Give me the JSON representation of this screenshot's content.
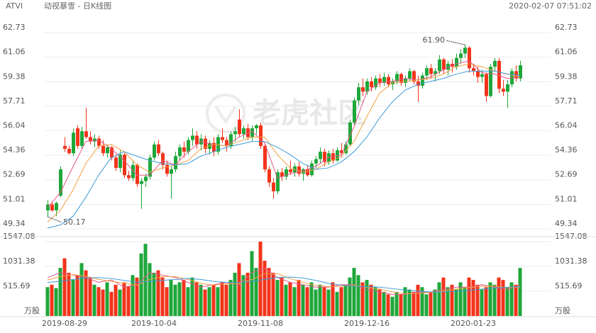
{
  "header": {
    "symbol": "ATVI",
    "name": "动视暴雪 - 日K线图",
    "time": "2020-02-07 07:51:02"
  },
  "watermark": "老虎社区",
  "chart_data": [
    {
      "type": "candlestick",
      "categories": [
        null,
        null,
        null,
        null,
        "2019-08-29",
        null,
        null,
        null,
        null,
        null,
        null,
        null,
        null,
        null,
        null,
        null,
        null,
        null,
        null,
        null,
        null,
        null,
        null,
        null,
        null,
        "2019-10-04",
        null,
        null,
        null,
        null,
        null,
        null,
        null,
        null,
        null,
        null,
        null,
        null,
        null,
        null,
        null,
        null,
        null,
        null,
        null,
        null,
        null,
        null,
        null,
        null,
        "2019-11-08",
        null,
        null,
        null,
        null,
        null,
        null,
        null,
        null,
        null,
        null,
        null,
        null,
        null,
        null,
        null,
        null,
        null,
        null,
        null,
        null,
        null,
        null,
        null,
        null,
        "2019-12-16",
        null,
        null,
        null,
        null,
        null,
        null,
        null,
        null,
        null,
        null,
        null,
        null,
        null,
        null,
        null,
        null,
        null,
        null,
        null,
        null,
        null,
        null,
        null,
        null,
        "2020-01-23",
        null,
        null,
        null,
        null,
        null,
        null,
        null,
        null,
        null,
        null,
        null
      ],
      "candles": [
        [
          50.6,
          51.3,
          50.17,
          51.0
        ],
        [
          51.0,
          51.2,
          50.5,
          50.6
        ],
        [
          50.6,
          51.2,
          50.2,
          51.1
        ],
        [
          51.6,
          53.6,
          51.5,
          53.4
        ],
        [
          55.0,
          55.6,
          54.6,
          54.8
        ],
        [
          54.8,
          55.0,
          54.4,
          54.5
        ],
        [
          54.5,
          56.2,
          54.3,
          55.9
        ],
        [
          56.2,
          56.4,
          54.8,
          55.0
        ],
        [
          55.0,
          56.3,
          54.8,
          56.0
        ],
        [
          56.0,
          57.6,
          55.5,
          55.6
        ],
        [
          55.6,
          56.0,
          55.1,
          55.3
        ],
        [
          55.3,
          55.8,
          54.9,
          55.5
        ],
        [
          55.5,
          55.7,
          54.8,
          55.0
        ],
        [
          55.0,
          55.4,
          54.3,
          54.5
        ],
        [
          54.5,
          55.1,
          54.2,
          54.9
        ],
        [
          54.9,
          55.0,
          54.0,
          54.2
        ],
        [
          54.2,
          54.4,
          53.3,
          53.5
        ],
        [
          53.5,
          54.7,
          53.2,
          54.4
        ],
        [
          54.4,
          54.5,
          52.8,
          53.0
        ],
        [
          53.0,
          53.3,
          52.6,
          52.8
        ],
        [
          52.8,
          54.0,
          52.6,
          53.7
        ],
        [
          53.7,
          53.8,
          52.2,
          52.4
        ],
        [
          52.4,
          52.8,
          50.7,
          52.6
        ],
        [
          52.6,
          53.1,
          52.2,
          52.9
        ],
        [
          52.9,
          54.4,
          52.7,
          54.2
        ],
        [
          54.2,
          55.3,
          54.0,
          55.1
        ],
        [
          55.1,
          55.4,
          54.3,
          54.5
        ],
        [
          54.5,
          54.6,
          53.4,
          53.7
        ],
        [
          53.7,
          54.0,
          52.9,
          53.1
        ],
        [
          53.1,
          53.6,
          51.4,
          53.4
        ],
        [
          53.4,
          54.6,
          53.2,
          54.3
        ],
        [
          54.3,
          55.1,
          54.0,
          54.9
        ],
        [
          54.9,
          55.3,
          54.2,
          54.6
        ],
        [
          54.6,
          55.6,
          54.4,
          55.4
        ],
        [
          55.4,
          56.2,
          55.0,
          55.7
        ],
        [
          55.7,
          56.0,
          54.8,
          55.1
        ],
        [
          55.1,
          55.8,
          54.7,
          55.5
        ],
        [
          55.5,
          55.7,
          54.5,
          54.8
        ],
        [
          54.8,
          55.4,
          54.4,
          55.2
        ],
        [
          55.2,
          55.6,
          54.3,
          54.6
        ],
        [
          54.6,
          55.8,
          54.4,
          55.6
        ],
        [
          55.6,
          56.2,
          55.2,
          55.4
        ],
        [
          55.4,
          55.6,
          54.6,
          55.0
        ],
        [
          55.0,
          56.0,
          54.8,
          55.8
        ],
        [
          55.8,
          56.3,
          55.3,
          56.0
        ],
        [
          56.8,
          57.5,
          55.6,
          55.8
        ],
        [
          55.8,
          56.4,
          55.5,
          56.2
        ],
        [
          56.2,
          56.5,
          55.4,
          55.6
        ],
        [
          55.6,
          56.4,
          55.3,
          56.2
        ],
        [
          56.2,
          56.5,
          55.8,
          56.4
        ],
        [
          56.4,
          56.6,
          54.8,
          55.0
        ],
        [
          55.0,
          55.2,
          53.2,
          53.4
        ],
        [
          53.4,
          53.6,
          52.2,
          52.5
        ],
        [
          52.5,
          52.8,
          51.4,
          51.9
        ],
        [
          51.9,
          53.4,
          51.7,
          53.2
        ],
        [
          53.2,
          53.5,
          52.6,
          52.9
        ],
        [
          52.9,
          53.6,
          52.7,
          53.4
        ],
        [
          53.4,
          54.0,
          53.0,
          53.2
        ],
        [
          53.2,
          53.8,
          52.9,
          53.6
        ],
        [
          53.6,
          53.9,
          52.9,
          53.1
        ],
        [
          53.1,
          53.5,
          52.6,
          53.4
        ],
        [
          53.4,
          53.7,
          52.9,
          53.0
        ],
        [
          53.0,
          54.0,
          52.9,
          53.8
        ],
        [
          53.8,
          54.3,
          53.5,
          54.1
        ],
        [
          54.1,
          54.9,
          53.8,
          54.6
        ],
        [
          54.6,
          54.8,
          53.6,
          53.9
        ],
        [
          53.9,
          54.7,
          53.7,
          54.5
        ],
        [
          54.5,
          54.8,
          53.8,
          54.0
        ],
        [
          54.0,
          54.9,
          53.9,
          54.7
        ],
        [
          54.7,
          55.2,
          54.2,
          54.5
        ],
        [
          54.5,
          55.3,
          54.4,
          55.1
        ],
        [
          55.1,
          56.8,
          55.0,
          56.6
        ],
        [
          56.6,
          58.3,
          56.4,
          58.1
        ],
        [
          58.1,
          59.3,
          57.8,
          59.0
        ],
        [
          59.0,
          59.6,
          58.4,
          58.7
        ],
        [
          58.7,
          59.6,
          58.5,
          59.4
        ],
        [
          59.4,
          59.7,
          58.7,
          59.0
        ],
        [
          59.0,
          59.8,
          58.8,
          59.6
        ],
        [
          59.6,
          59.9,
          59.0,
          59.3
        ],
        [
          59.3,
          60.0,
          59.1,
          59.7
        ],
        [
          59.7,
          59.9,
          59.0,
          59.2
        ],
        [
          59.2,
          59.6,
          58.8,
          59.4
        ],
        [
          59.4,
          60.1,
          59.2,
          59.9
        ],
        [
          59.9,
          60.0,
          59.1,
          59.3
        ],
        [
          59.3,
          59.8,
          59.0,
          59.6
        ],
        [
          59.6,
          60.3,
          59.4,
          60.1
        ],
        [
          60.1,
          60.2,
          59.2,
          59.4
        ],
        [
          59.4,
          59.8,
          58.0,
          59.1
        ],
        [
          59.1,
          60.0,
          58.9,
          59.8
        ],
        [
          59.8,
          60.5,
          59.5,
          60.3
        ],
        [
          60.3,
          60.6,
          59.6,
          59.9
        ],
        [
          59.9,
          60.3,
          59.4,
          60.1
        ],
        [
          60.1,
          61.2,
          59.9,
          60.9
        ],
        [
          60.9,
          61.0,
          59.9,
          60.2
        ],
        [
          60.2,
          60.8,
          59.8,
          60.6
        ],
        [
          60.6,
          60.9,
          60.0,
          60.4
        ],
        [
          60.4,
          61.3,
          60.2,
          61.0
        ],
        [
          61.0,
          61.6,
          60.6,
          61.3
        ],
        [
          61.3,
          61.9,
          61.0,
          61.7
        ],
        [
          61.7,
          61.8,
          60.0,
          60.3
        ],
        [
          60.3,
          60.6,
          59.8,
          60.1
        ],
        [
          60.1,
          60.4,
          59.3,
          59.7
        ],
        [
          59.7,
          60.2,
          59.3,
          59.9
        ],
        [
          59.9,
          60.0,
          58.0,
          58.4
        ],
        [
          58.4,
          60.6,
          58.3,
          60.4
        ],
        [
          60.4,
          61.0,
          60.1,
          60.8
        ],
        [
          60.8,
          61.0,
          58.6,
          58.9
        ],
        [
          58.9,
          59.5,
          58.4,
          58.7
        ],
        [
          58.7,
          59.5,
          57.6,
          59.2
        ],
        [
          59.2,
          60.3,
          59.0,
          60.1
        ],
        [
          60.1,
          60.5,
          59.4,
          59.6
        ],
        [
          59.6,
          60.8,
          59.4,
          60.5
        ]
      ],
      "up_color": "#1fa73a",
      "down_color": "#f2341b",
      "ylim": [
        49.34,
        62.73
      ],
      "yticks": [
        49.34,
        51.01,
        52.69,
        54.36,
        56.04,
        57.71,
        59.38,
        61.06,
        62.73
      ],
      "grid": true,
      "annotations": [
        {
          "label": "61.90",
          "value": 61.9
        },
        {
          "label": "50.17",
          "value": 50.17
        }
      ],
      "moving_averages": {
        "x": [
          0,
          3,
          6,
          9,
          12,
          15,
          18,
          21,
          24,
          27,
          30,
          33,
          36,
          39,
          42,
          45,
          48,
          51,
          54,
          57,
          60,
          63,
          66,
          69,
          72,
          75,
          78,
          81,
          84,
          87,
          90,
          93,
          96,
          99,
          102,
          105,
          108,
          111
        ],
        "series": [
          {
            "color": "#e5588a",
            "values": [
              50.8,
              51.8,
              53.6,
              55.3,
              55.4,
              54.8,
              54.0,
              53.0,
              53.0,
              54.0,
              53.7,
              54.6,
              55.3,
              55.1,
              55.0,
              55.6,
              56.0,
              55.2,
              52.8,
              53.1,
              53.3,
              53.6,
              54.2,
              54.4,
              56.3,
              58.7,
              59.3,
              59.4,
              59.6,
              59.5,
              59.7,
              60.2,
              60.6,
              60.8,
              60.0,
              59.9,
              59.6,
              59.7
            ]
          },
          {
            "color": "#f3a040",
            "values": [
              49.8,
              50.6,
              52.0,
              53.8,
              55.0,
              55.1,
              54.6,
              53.7,
              53.2,
              53.5,
              53.7,
              54.0,
              54.8,
              55.1,
              55.0,
              55.3,
              55.6,
              55.6,
              54.4,
              53.5,
              53.2,
              53.4,
              53.9,
              54.3,
              55.3,
              57.0,
              58.6,
              59.3,
              59.4,
              59.5,
              59.6,
              59.9,
              60.4,
              60.6,
              60.4,
              60.1,
              59.9,
              59.7
            ]
          },
          {
            "color": "#3e9bd6",
            "values": [
              49.4,
              49.6,
              50.2,
              51.5,
              53.0,
              54.2,
              54.6,
              54.3,
              54.0,
              53.8,
              53.7,
              53.8,
              54.3,
              54.6,
              54.9,
              55.1,
              55.3,
              55.3,
              54.9,
              54.4,
              53.8,
              53.4,
              53.5,
              53.9,
              54.6,
              55.6,
              56.9,
              58.0,
              58.8,
              59.2,
              59.4,
              59.6,
              59.9,
              60.1,
              60.1,
              60.1,
              59.9,
              59.8
            ]
          }
        ]
      }
    },
    {
      "type": "bar",
      "values": [
        600,
        650,
        580,
        1000,
        1200,
        900,
        750,
        850,
        1100,
        950,
        800,
        650,
        600,
        550,
        700,
        500,
        650,
        550,
        700,
        620,
        850,
        800,
        1300,
        1500,
        1100,
        900,
        950,
        800,
        600,
        750,
        650,
        700,
        750,
        600,
        800,
        700,
        650,
        550,
        600,
        650,
        600,
        700,
        650,
        750,
        900,
        1100,
        850,
        900,
        1350,
        1000,
        1547,
        1150,
        1000,
        900,
        750,
        800,
        650,
        700,
        600,
        750,
        650,
        600,
        700,
        550,
        650,
        600,
        550,
        700,
        500,
        600,
        650,
        800,
        1000,
        850,
        700,
        750,
        650,
        600,
        550,
        500,
        450,
        400,
        500,
        450,
        600,
        550,
        500,
        650,
        600,
        450,
        500,
        550,
        700,
        800,
        600,
        650,
        550,
        700,
        600,
        800,
        750,
        650,
        550,
        600,
        700,
        650,
        800,
        750,
        600,
        700,
        650,
        1000
      ],
      "unit": "万股",
      "ylim": [
        0,
        1547.08
      ],
      "yticks": [
        515.69,
        1031.38,
        1547.08
      ],
      "grid": true,
      "moving_averages": {
        "x": [
          0,
          3,
          6,
          9,
          12,
          15,
          18,
          21,
          24,
          27,
          30,
          33,
          36,
          39,
          42,
          45,
          48,
          51,
          54,
          57,
          60,
          63,
          66,
          69,
          72,
          75,
          78,
          81,
          84,
          87,
          90,
          93,
          96,
          99,
          102,
          105,
          108,
          111
        ],
        "series": [
          {
            "color": "#e5588a",
            "values": [
              800,
              900,
              850,
              800,
              700,
              750,
              600,
              650,
              900,
              850,
              800,
              700,
              600,
              650,
              700,
              650,
              900,
              1000,
              800,
              700,
              650,
              600,
              600,
              650,
              650,
              550,
              500,
              450,
              450,
              500,
              500,
              550,
              600,
              600,
              650,
              600,
              550,
              650
            ]
          },
          {
            "color": "#f3a040",
            "values": [
              750,
              820,
              860,
              830,
              760,
              720,
              680,
              640,
              760,
              820,
              820,
              760,
              680,
              640,
              670,
              670,
              760,
              880,
              880,
              780,
              700,
              640,
              610,
              620,
              640,
              600,
              560,
              500,
              460,
              470,
              490,
              520,
              560,
              590,
              620,
              620,
              590,
              600
            ]
          },
          {
            "color": "#3e9bd6",
            "values": [
              700,
              720,
              760,
              790,
              800,
              780,
              740,
              700,
              720,
              740,
              760,
              780,
              760,
              720,
              700,
              690,
              720,
              760,
              800,
              810,
              790,
              740,
              680,
              640,
              620,
              610,
              600,
              570,
              540,
              520,
              500,
              500,
              510,
              530,
              560,
              580,
              600,
              610
            ]
          }
        ]
      }
    }
  ]
}
